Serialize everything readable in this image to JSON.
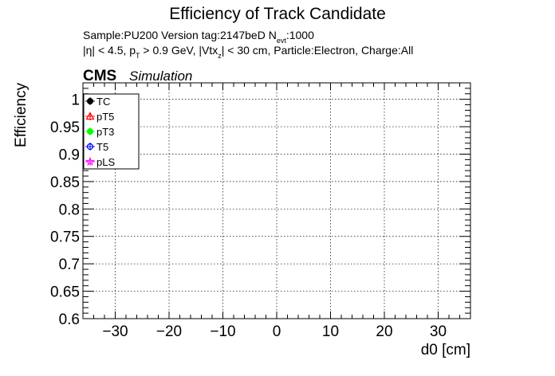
{
  "chart_data": {
    "type": "scatter",
    "title": "Efficiency of Track Candidate",
    "subtitle_sample": "Sample:PU200   Version tag:2147beD  N",
    "subtitle_nevt_sub": "evt",
    "subtitle_nevt_value": ":1000",
    "cuts_eta": "|η| < 4.5, p",
    "cuts_pt_sub": "T",
    "cuts_pt": " > 0.9 GeV, |Vtx",
    "cuts_vtx_sub": "z",
    "cuts_rest": "| < 30 cm, Particle:Electron, Charge:All",
    "experiment": "CMS",
    "experiment_tag": "Simulation",
    "xlabel": "d0 [cm]",
    "ylabel": "Efficiency",
    "xlim": [
      -36,
      36
    ],
    "ylim": [
      0.6,
      1.03
    ],
    "x_ticks": [
      -30,
      -20,
      -10,
      0,
      10,
      20,
      30
    ],
    "x_tick_labels": [
      "−30",
      "−20",
      "−10",
      "0",
      "10",
      "20",
      "30"
    ],
    "y_ticks": [
      0.6,
      0.65,
      0.7,
      0.75,
      0.8,
      0.85,
      0.9,
      0.95,
      1
    ],
    "y_tick_labels": [
      "0.6",
      "0.65",
      "0.7",
      "0.75",
      "0.8",
      "0.85",
      "0.9",
      "0.95",
      "1"
    ],
    "grid": true,
    "legend_position": "top-left",
    "series": [
      {
        "name": "TC",
        "color": "#000000",
        "marker": "filled-circle",
        "values": []
      },
      {
        "name": "pT5",
        "color": "#ff0000",
        "marker": "open-triangle",
        "values": []
      },
      {
        "name": "pT3",
        "color": "#00ff00",
        "marker": "filled-circle",
        "values": []
      },
      {
        "name": "T5",
        "color": "#0000ff",
        "marker": "open-circle",
        "values": []
      },
      {
        "name": "pLS",
        "color": "#ff00ff",
        "marker": "star",
        "values": []
      }
    ]
  }
}
